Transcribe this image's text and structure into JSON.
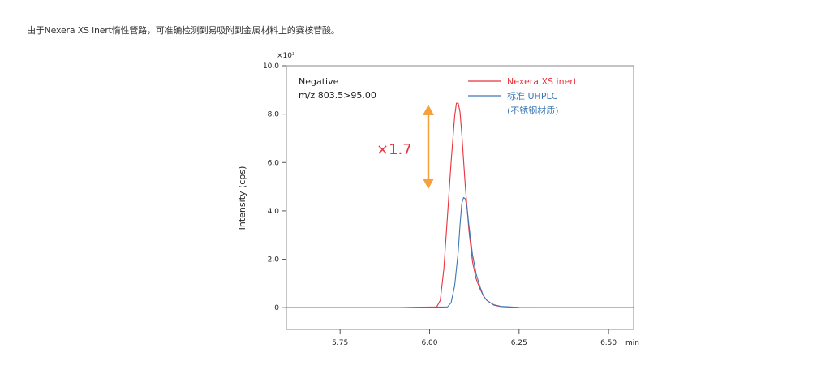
{
  "caption": "由于Nexera XS inert惰性管路，可准确检测到易吸附到金属材料上的赛核苷酸。",
  "chart_data": {
    "type": "line",
    "ylabel": "Intensity (cps)",
    "xlabel": "min",
    "y_multiplier": "×10³",
    "annotation_lines": [
      "Negative",
      "m/z 803.5>95.00"
    ],
    "ratio_label": "×1.7",
    "xlim": [
      5.6,
      6.57
    ],
    "ylim": [
      -0.9,
      10.0
    ],
    "x_ticks": [
      5.75,
      6.0,
      6.25,
      6.5
    ],
    "x_tick_labels": [
      "5.75",
      "6.00",
      "6.25",
      "6.50"
    ],
    "y_ticks": [
      0,
      2.0,
      4.0,
      6.0,
      8.0,
      10.0
    ],
    "y_tick_labels": [
      "0",
      "2.0",
      "4.0",
      "6.0",
      "8.0",
      "10.0"
    ],
    "colors": {
      "red": "#e8323c",
      "blue": "#3d78b4",
      "arrow": "#f5a23c",
      "ratio": "#e8323c"
    },
    "series": [
      {
        "name": "Nexera XS inert",
        "color": "#e8323c",
        "x": [
          5.6,
          5.9,
          6.02,
          6.03,
          6.04,
          6.05,
          6.06,
          6.07,
          6.075,
          6.08,
          6.085,
          6.09,
          6.095,
          6.1,
          6.11,
          6.12,
          6.13,
          6.14,
          6.15,
          6.16,
          6.18,
          6.2,
          6.25,
          6.3,
          6.57
        ],
        "y": [
          0,
          0,
          0.03,
          0.3,
          1.6,
          3.8,
          6.0,
          7.9,
          8.45,
          8.45,
          8.1,
          7.2,
          6.1,
          5.0,
          3.2,
          1.9,
          1.2,
          0.8,
          0.5,
          0.3,
          0.1,
          0.04,
          0.01,
          0,
          0
        ]
      },
      {
        "name": "标准 UHPLC",
        "name_line2": "(不锈钢材质)",
        "color": "#3d78b4",
        "x": [
          5.6,
          5.9,
          6.05,
          6.06,
          6.07,
          6.08,
          6.085,
          6.09,
          6.095,
          6.1,
          6.105,
          6.11,
          6.12,
          6.13,
          6.14,
          6.15,
          6.16,
          6.17,
          6.18,
          6.2,
          6.25,
          6.3,
          6.57
        ],
        "y": [
          0,
          0,
          0.03,
          0.2,
          0.9,
          2.3,
          3.4,
          4.3,
          4.55,
          4.5,
          4.1,
          3.4,
          2.2,
          1.4,
          0.9,
          0.5,
          0.3,
          0.2,
          0.12,
          0.05,
          0.01,
          0,
          0
        ]
      }
    ]
  }
}
